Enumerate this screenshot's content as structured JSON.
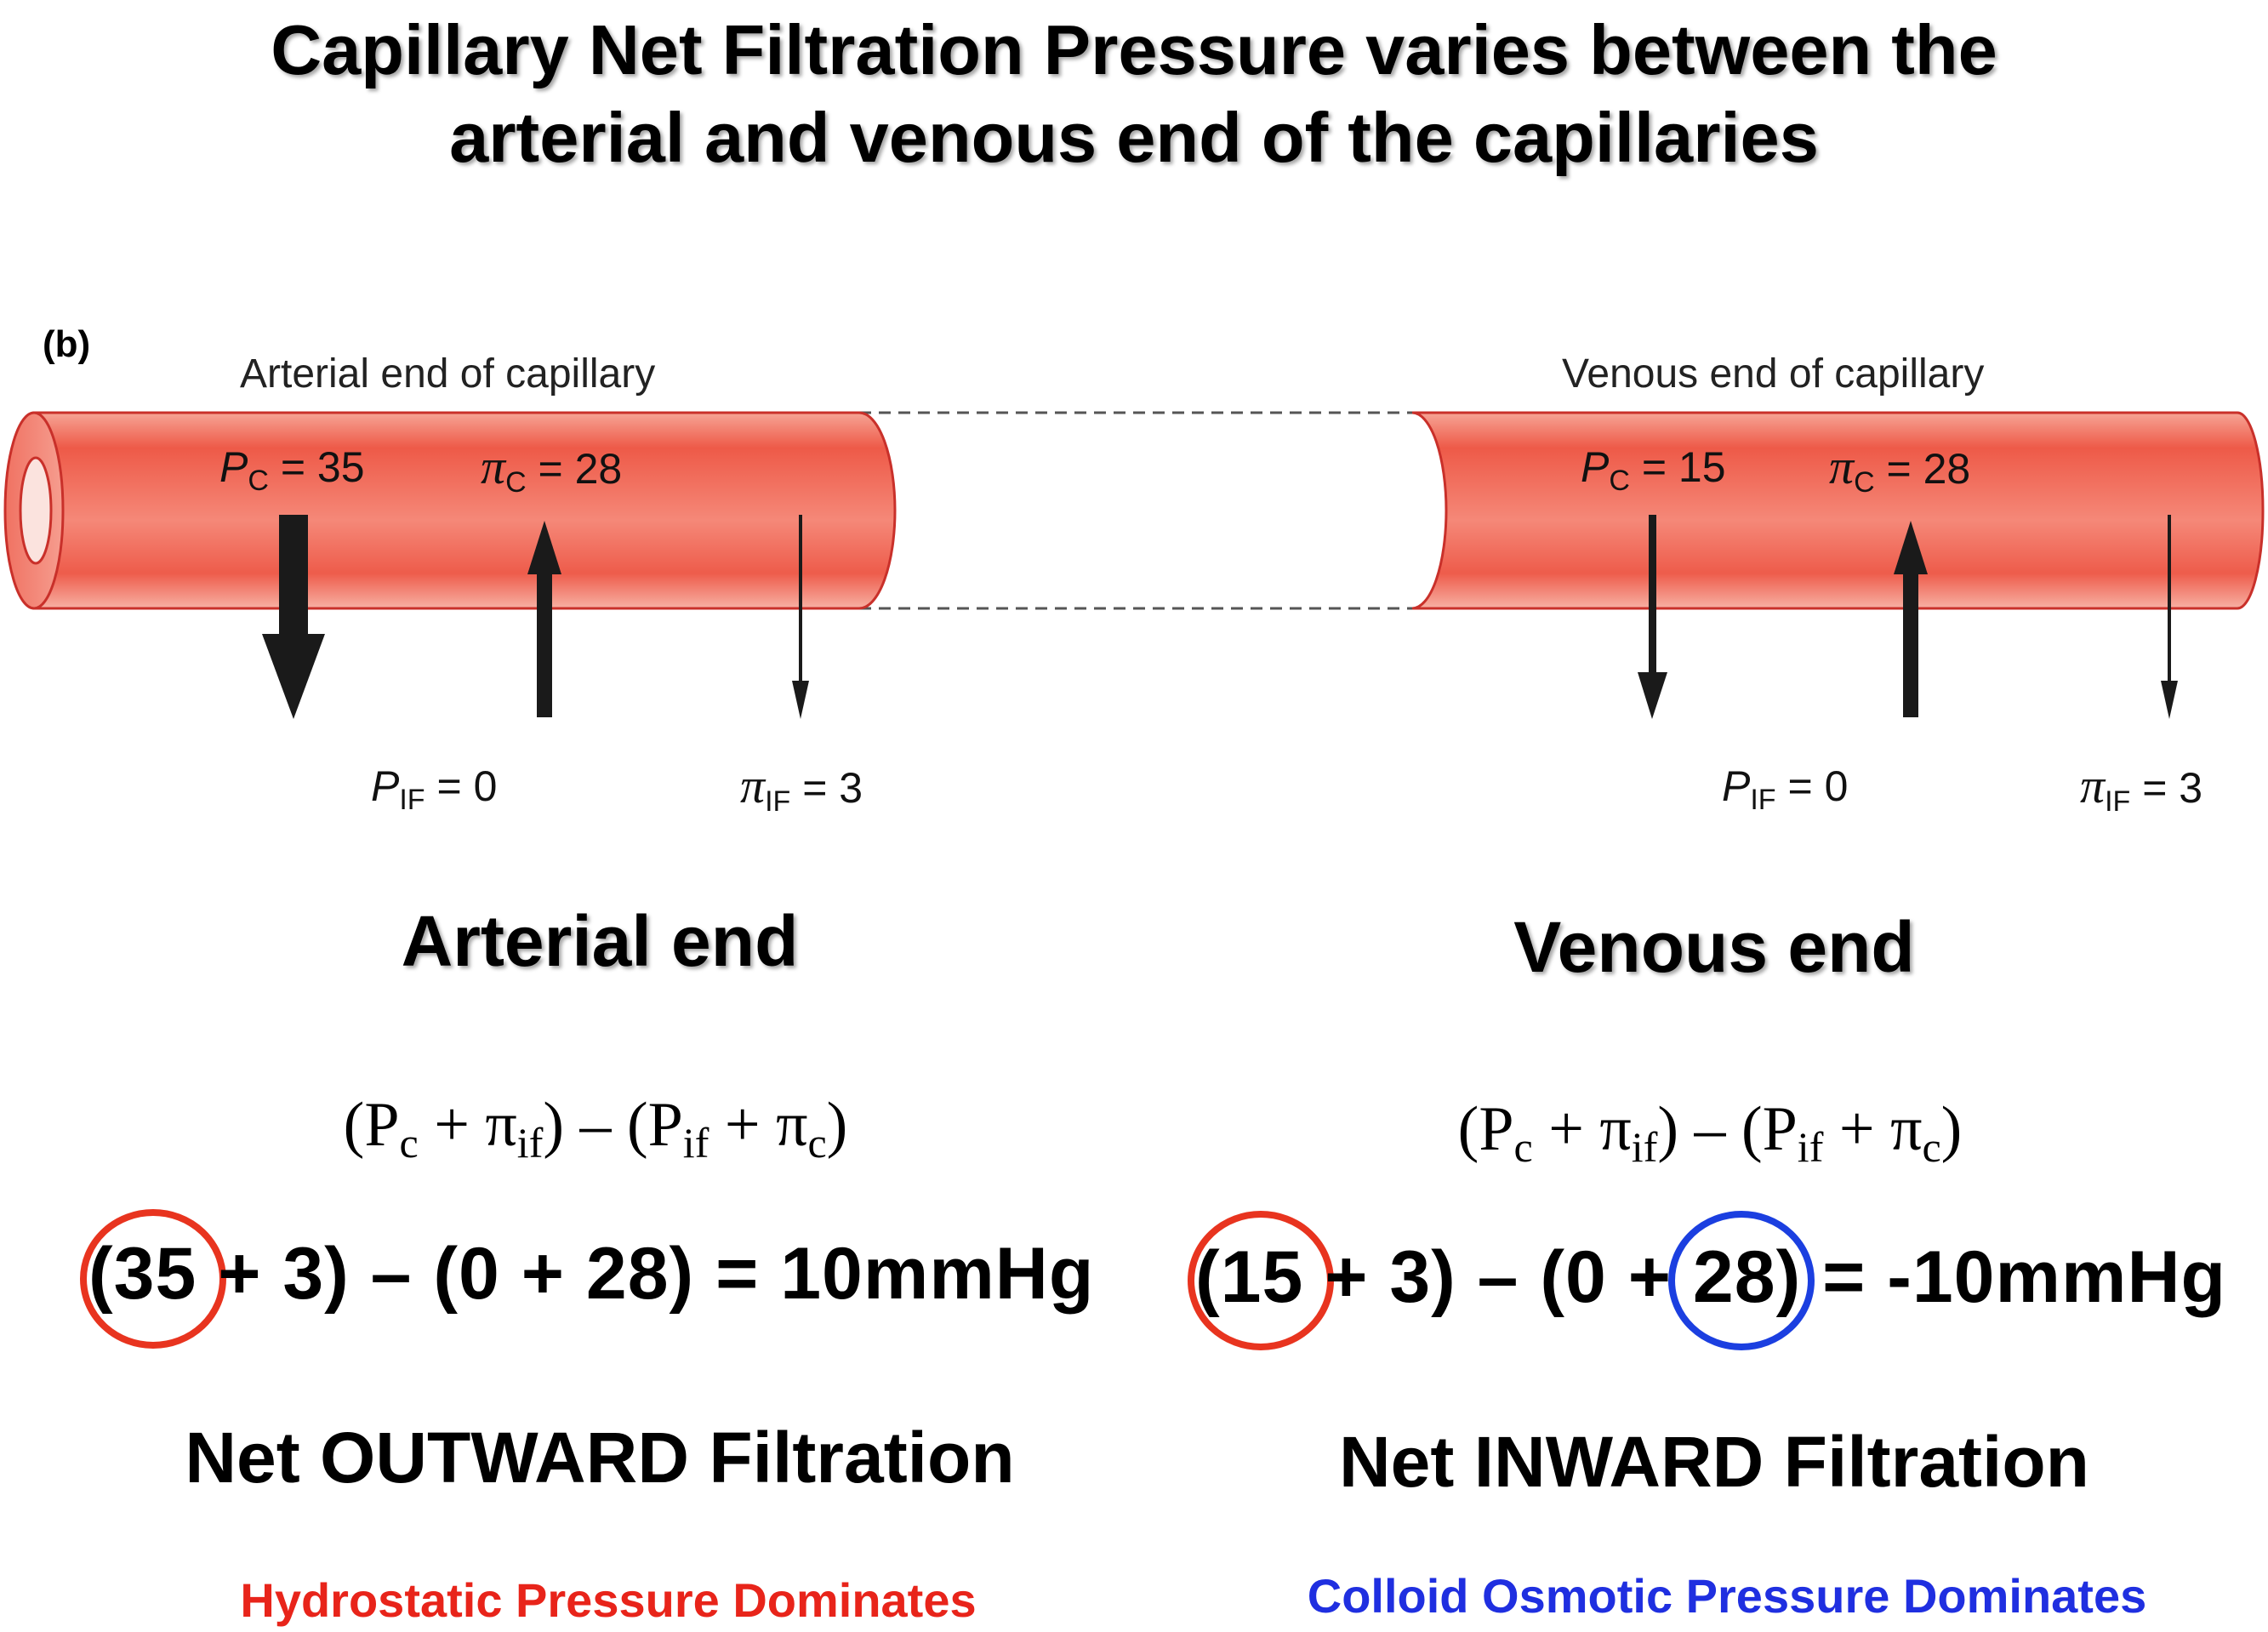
{
  "title": {
    "line1": "Capillary Net Filtration Pressure varies between the",
    "line2": "arterial and venous end of the capillaries"
  },
  "diagram": {
    "panel_label": "(b)",
    "arterial": {
      "caption": "Arterial end of capillary",
      "pc_sym": "P",
      "pc_sub": "C",
      "pc_val": "= 35",
      "pic_sym": "π",
      "pic_sub": "C",
      "pic_val": "= 28",
      "pif_sym": "P",
      "pif_sub": "IF",
      "pif_val": "= 0",
      "piif_sym": "π",
      "piif_sub": "IF",
      "piif_val": "= 3"
    },
    "venous": {
      "caption": "Venous end of capillary",
      "pc_sym": "P",
      "pc_sub": "C",
      "pc_val": "= 15",
      "pic_sym": "π",
      "pic_sub": "C",
      "pic_val": "= 28",
      "pif_sym": "P",
      "pif_sub": "IF",
      "pif_val": "= 0",
      "piif_sym": "π",
      "piif_sub": "IF",
      "piif_val": "= 3"
    },
    "colors": {
      "vessel": "#e9473b",
      "vessel_edge": "#c9302a",
      "red_circle": "#e8341f",
      "blue_circle": "#1b3fe0"
    }
  },
  "arterial_section": {
    "heading": "Arterial end",
    "formula": {
      "open1": "(P",
      "s1": "c",
      "plus1": " + π",
      "s2": "if",
      "mid": ") – (P",
      "s3": "if",
      "plus2": " + π",
      "s4": "c",
      "close": ")"
    },
    "calc": {
      "open": "(",
      "highlight": "35",
      "rest": " + 3) – (0 + 28) = 10mmHg"
    },
    "result": "Net OUTWARD Filtration",
    "dominates": "Hydrostatic Pressure Dominates",
    "dominates_color": "#e8241a"
  },
  "venous_section": {
    "heading": "Venous end",
    "formula": {
      "open1": "(P",
      "s1": "c",
      "plus1": " + π",
      "s2": "if",
      "mid": ") – (P",
      "s3": "if",
      "plus2": " + π",
      "s4": "c",
      "close": ")"
    },
    "calc": {
      "open": "(",
      "highlight1": "15",
      "mid": " + 3) – (0 + ",
      "highlight2": "28",
      "rest": ") = -10mmHg"
    },
    "result": "Net INWARD Filtration",
    "dominates": "Colloid Osmotic Pressure Dominates",
    "dominates_color": "#1f2fe0"
  }
}
